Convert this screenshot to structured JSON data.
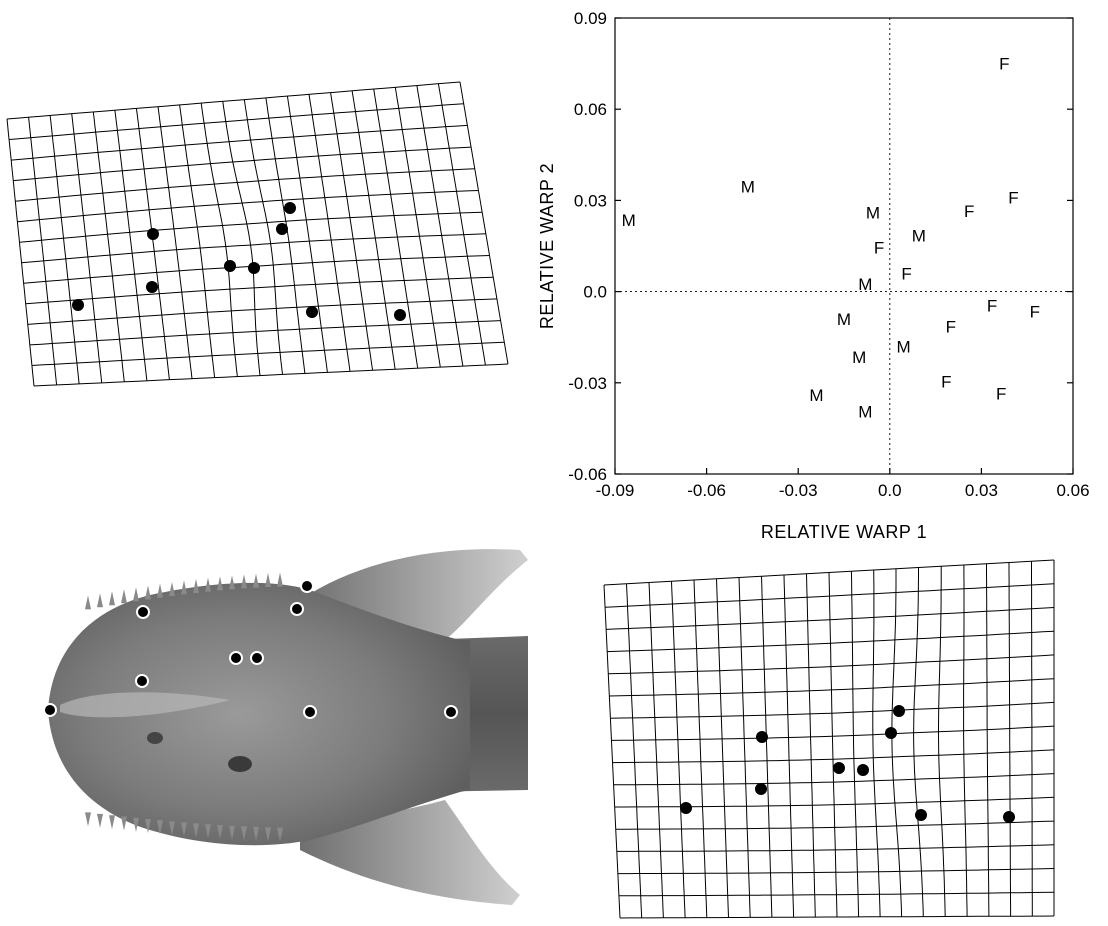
{
  "chart_data": {
    "type": "scatter",
    "xlabel": "RELATIVE WARP 1",
    "ylabel": "RELATIVE WARP 2",
    "xlim": [
      -0.09,
      0.06
    ],
    "ylim": [
      -0.06,
      0.09
    ],
    "xticks": [
      "-0.09",
      "-0.06",
      "-0.03",
      "0.0",
      "0.03",
      "0.06"
    ],
    "yticks": [
      "-0.06",
      "-0.03",
      "0.0",
      "0.03",
      "0.06",
      "0.09"
    ],
    "x_tick_values": [
      -0.09,
      -0.06,
      -0.03,
      0.0,
      0.03,
      0.06
    ],
    "y_tick_values": [
      -0.06,
      -0.03,
      0.0,
      0.03,
      0.06,
      0.09
    ],
    "reference_lines": {
      "x": 0.0,
      "y": 0.0,
      "style": "dotted"
    },
    "points": [
      {
        "label": "M",
        "x": -0.0855,
        "y": 0.0235
      },
      {
        "label": "M",
        "x": -0.0465,
        "y": 0.0345
      },
      {
        "label": "M",
        "x": -0.0055,
        "y": 0.026
      },
      {
        "label": "M",
        "x": 0.0095,
        "y": 0.0185
      },
      {
        "label": "M",
        "x": -0.008,
        "y": 0.0025
      },
      {
        "label": "M",
        "x": -0.015,
        "y": -0.009
      },
      {
        "label": "M",
        "x": 0.0045,
        "y": -0.018
      },
      {
        "label": "M",
        "x": -0.01,
        "y": -0.0215
      },
      {
        "label": "M",
        "x": -0.024,
        "y": -0.034
      },
      {
        "label": "M",
        "x": -0.008,
        "y": -0.0395
      },
      {
        "label": "F",
        "x": 0.0375,
        "y": 0.075
      },
      {
        "label": "F",
        "x": 0.0405,
        "y": 0.031
      },
      {
        "label": "F",
        "x": 0.026,
        "y": 0.0265
      },
      {
        "label": "F",
        "x": -0.0035,
        "y": 0.0145
      },
      {
        "label": "F",
        "x": 0.0055,
        "y": 0.006
      },
      {
        "label": "F",
        "x": 0.0335,
        "y": -0.0045
      },
      {
        "label": "F",
        "x": 0.0475,
        "y": -0.0065
      },
      {
        "label": "F",
        "x": 0.02,
        "y": -0.0115
      },
      {
        "label": "F",
        "x": 0.0185,
        "y": -0.0295
      },
      {
        "label": "F",
        "x": 0.0365,
        "y": -0.0335
      }
    ]
  },
  "figure": {
    "grid_top_left": {
      "cols": 21,
      "rows": 13,
      "landmarks": 9
    },
    "grid_bottom_right": {
      "cols": 20,
      "rows": 15,
      "landmarks": 9
    },
    "photo": {
      "subject": "fish-head-dorsal-view",
      "landmarks": 10
    }
  }
}
